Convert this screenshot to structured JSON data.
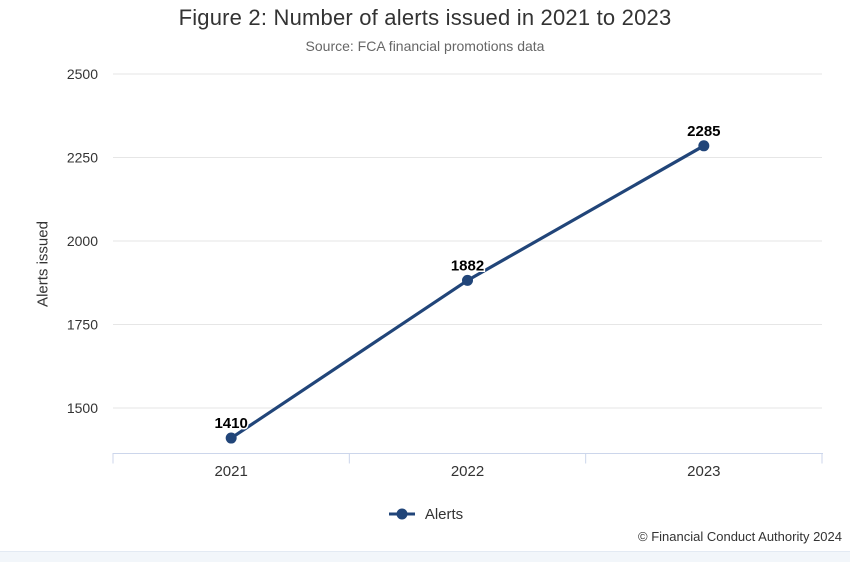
{
  "chart": {
    "title": "Figure 2: Number of alerts issued in 2021 to 2023",
    "subtitle": "Source: FCA financial promotions data",
    "ylabel": "Alerts issued",
    "copyright": "© Financial Conduct Authority 2024"
  },
  "legend": {
    "position": "bottom",
    "items": [
      {
        "label": "Alerts",
        "marker": "line-dot-icon"
      }
    ]
  },
  "colors": {
    "series": "#214579",
    "gridline": "#e6e6e6",
    "axis_line": "#ccd6eb",
    "title_text": "#333333",
    "subtitle_text": "#666666",
    "data_label": "#000000",
    "bottom_strip": "#f2f6fa"
  },
  "chart_data": {
    "type": "line",
    "title": "Figure 2: Number of alerts issued in 2021 to 2023",
    "subtitle": "Source: FCA financial promotions data",
    "xlabel": "",
    "ylabel": "Alerts issued",
    "categories": [
      "2021",
      "2022",
      "2023"
    ],
    "series": [
      {
        "name": "Alerts",
        "values": [
          1410,
          1882,
          2285
        ]
      }
    ],
    "data_labels": [
      1410,
      1882,
      2285
    ],
    "yticks": [
      1500,
      1750,
      2000,
      2250,
      2500
    ],
    "ylim": [
      1365,
      2500
    ],
    "grid": true,
    "legend_position": "bottom",
    "marker": "circle"
  }
}
